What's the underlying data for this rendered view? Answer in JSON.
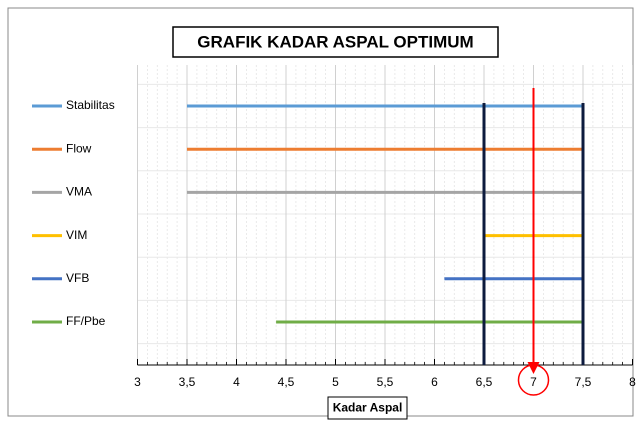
{
  "chart_data": {
    "type": "range_bar",
    "title": "GRAFIK KADAR ASPAL OPTIMUM",
    "x_label": "Kadar Aspal",
    "xlim": [
      3,
      8
    ],
    "xticks": [
      3,
      {
        "value": 3.5,
        "label": "3,5"
      },
      4,
      {
        "value": 4.5,
        "label": "4,5"
      },
      5,
      {
        "value": 5.5,
        "label": "5,5"
      },
      6,
      {
        "value": 6.5,
        "label": "6,5"
      },
      7,
      {
        "value": 7.5,
        "label": "7,5"
      },
      8
    ],
    "series": [
      {
        "name": "Stabilitas",
        "color": "#5b9bd5",
        "values": [
          3.5,
          7.5
        ]
      },
      {
        "name": "Flow",
        "color": "#ed7d31",
        "values": [
          3.5,
          7.5
        ]
      },
      {
        "name": "VMA",
        "color": "#a5a5a5",
        "values": [
          3.5,
          7.5
        ]
      },
      {
        "name": "VIM",
        "color": "#ffc000",
        "values": [
          6.5,
          7.5
        ]
      },
      {
        "name": "VFB",
        "color": "#4472c4",
        "values": [
          6.1,
          7.5
        ]
      },
      {
        "name": "FF/Pbe",
        "color": "#70ad47",
        "values": [
          4.4,
          7.5
        ]
      }
    ],
    "bounds": [
      6.5,
      7.5
    ],
    "bounds_color": "#0d1b3e",
    "optimum": 7,
    "optimum_color": "#ff0000",
    "grid": true
  }
}
